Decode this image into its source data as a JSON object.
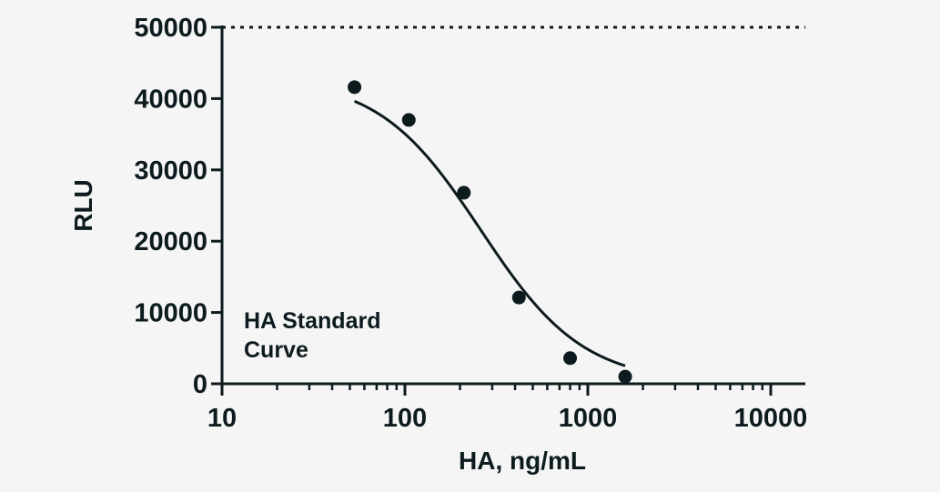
{
  "chart_data": {
    "type": "scatter",
    "title": "",
    "xlabel": "HA, ng/mL",
    "ylabel": "RLU",
    "x_scale": "log",
    "xlim": [
      10,
      16000
    ],
    "ylim": [
      0,
      50000
    ],
    "x_ticks": [
      10,
      100,
      1000,
      10000
    ],
    "x_tick_labels": [
      "10",
      "100",
      "1000",
      "10000"
    ],
    "y_ticks": [
      0,
      10000,
      20000,
      30000,
      40000,
      50000
    ],
    "y_tick_labels": [
      "0",
      "10000",
      "20000",
      "30000",
      "40000",
      "50000"
    ],
    "reference_line": {
      "y": 50000,
      "style": "dotted"
    },
    "annotation": [
      "HA Standard",
      "Curve"
    ],
    "grid": false,
    "series": [
      {
        "points": [
          {
            "x": 53,
            "y": 41600
          },
          {
            "x": 105,
            "y": 37000
          },
          {
            "x": 210,
            "y": 26800
          },
          {
            "x": 420,
            "y": 12100
          },
          {
            "x": 800,
            "y": 3600
          },
          {
            "x": 1600,
            "y": 1000
          }
        ],
        "fit": {
          "model": "4PL",
          "top": 43000,
          "bottom": 100,
          "ec50": 260,
          "hill": 1.55
        }
      }
    ],
    "colors": {
      "ink": "#0d1b1e",
      "background": "#f5f5f5"
    }
  }
}
